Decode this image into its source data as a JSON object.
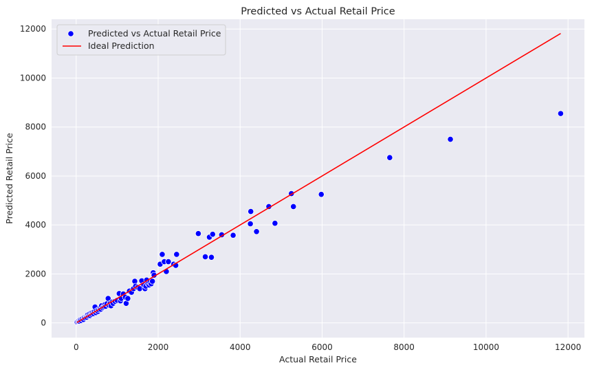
{
  "chart_data": {
    "type": "scatter",
    "title": "Predicted vs Actual Retail Price",
    "xlabel": "Actual Retail Price",
    "ylabel": "Predicted Retail Price",
    "xlim": [
      -600,
      12400
    ],
    "ylim": [
      -600,
      12400
    ],
    "xticks": [
      0,
      2000,
      4000,
      6000,
      8000,
      10000,
      12000
    ],
    "yticks": [
      0,
      2000,
      4000,
      6000,
      8000,
      10000,
      12000
    ],
    "grid": true,
    "legend_position": "top-left",
    "background_color": "#eaeaf2",
    "grid_color": "#ffffff",
    "series": [
      {
        "name": "Predicted vs Actual Retail Price",
        "kind": "scatter",
        "color": "#0000ff",
        "points": [
          [
            20,
            40
          ],
          [
            40,
            60
          ],
          [
            60,
            80
          ],
          [
            80,
            70
          ],
          [
            100,
            120
          ],
          [
            120,
            100
          ],
          [
            150,
            160
          ],
          [
            180,
            140
          ],
          [
            200,
            220
          ],
          [
            220,
            200
          ],
          [
            250,
            260
          ],
          [
            260,
            230
          ],
          [
            280,
            330
          ],
          [
            300,
            280
          ],
          [
            320,
            360
          ],
          [
            340,
            300
          ],
          [
            360,
            400
          ],
          [
            380,
            350
          ],
          [
            400,
            420
          ],
          [
            420,
            380
          ],
          [
            450,
            460
          ],
          [
            460,
            650
          ],
          [
            480,
            420
          ],
          [
            500,
            500
          ],
          [
            530,
            470
          ],
          [
            550,
            540
          ],
          [
            580,
            600
          ],
          [
            600,
            560
          ],
          [
            620,
            700
          ],
          [
            650,
            620
          ],
          [
            680,
            660
          ],
          [
            700,
            750
          ],
          [
            720,
            680
          ],
          [
            750,
            780
          ],
          [
            780,
            1000
          ],
          [
            800,
            720
          ],
          [
            830,
            800
          ],
          [
            850,
            700
          ],
          [
            880,
            850
          ],
          [
            900,
            800
          ],
          [
            950,
            880
          ],
          [
            1000,
            920
          ],
          [
            1050,
            1200
          ],
          [
            1080,
            900
          ],
          [
            1100,
            1000
          ],
          [
            1150,
            1180
          ],
          [
            1200,
            1050
          ],
          [
            1220,
            800
          ],
          [
            1260,
            1000
          ],
          [
            1300,
            1300
          ],
          [
            1350,
            1250
          ],
          [
            1400,
            1400
          ],
          [
            1430,
            1700
          ],
          [
            1450,
            1500
          ],
          [
            1500,
            1450
          ],
          [
            1550,
            1400
          ],
          [
            1600,
            1720
          ],
          [
            1650,
            1550
          ],
          [
            1680,
            1400
          ],
          [
            1700,
            1500
          ],
          [
            1720,
            1750
          ],
          [
            1750,
            1600
          ],
          [
            1780,
            1550
          ],
          [
            1800,
            1650
          ],
          [
            1830,
            1600
          ],
          [
            1860,
            1700
          ],
          [
            1880,
            2050
          ],
          [
            1900,
            1950
          ],
          [
            2050,
            2400
          ],
          [
            2100,
            2800
          ],
          [
            2150,
            2500
          ],
          [
            2200,
            2100
          ],
          [
            2250,
            2500
          ],
          [
            2380,
            2400
          ],
          [
            2430,
            2350
          ],
          [
            2450,
            2800
          ],
          [
            2980,
            3650
          ],
          [
            3150,
            2700
          ],
          [
            3250,
            3500
          ],
          [
            3300,
            2680
          ],
          [
            3330,
            3620
          ],
          [
            3550,
            3600
          ],
          [
            3830,
            3580
          ],
          [
            4250,
            4050
          ],
          [
            4260,
            4550
          ],
          [
            4400,
            3730
          ],
          [
            4700,
            4750
          ],
          [
            4850,
            4070
          ],
          [
            5250,
            5280
          ],
          [
            5300,
            4750
          ],
          [
            5980,
            5250
          ],
          [
            7650,
            6750
          ],
          [
            9130,
            7500
          ],
          [
            11820,
            8550
          ]
        ]
      },
      {
        "name": "Ideal Prediction",
        "kind": "line",
        "color": "#ff0000",
        "points": [
          [
            20,
            20
          ],
          [
            11820,
            11820
          ]
        ]
      }
    ]
  }
}
